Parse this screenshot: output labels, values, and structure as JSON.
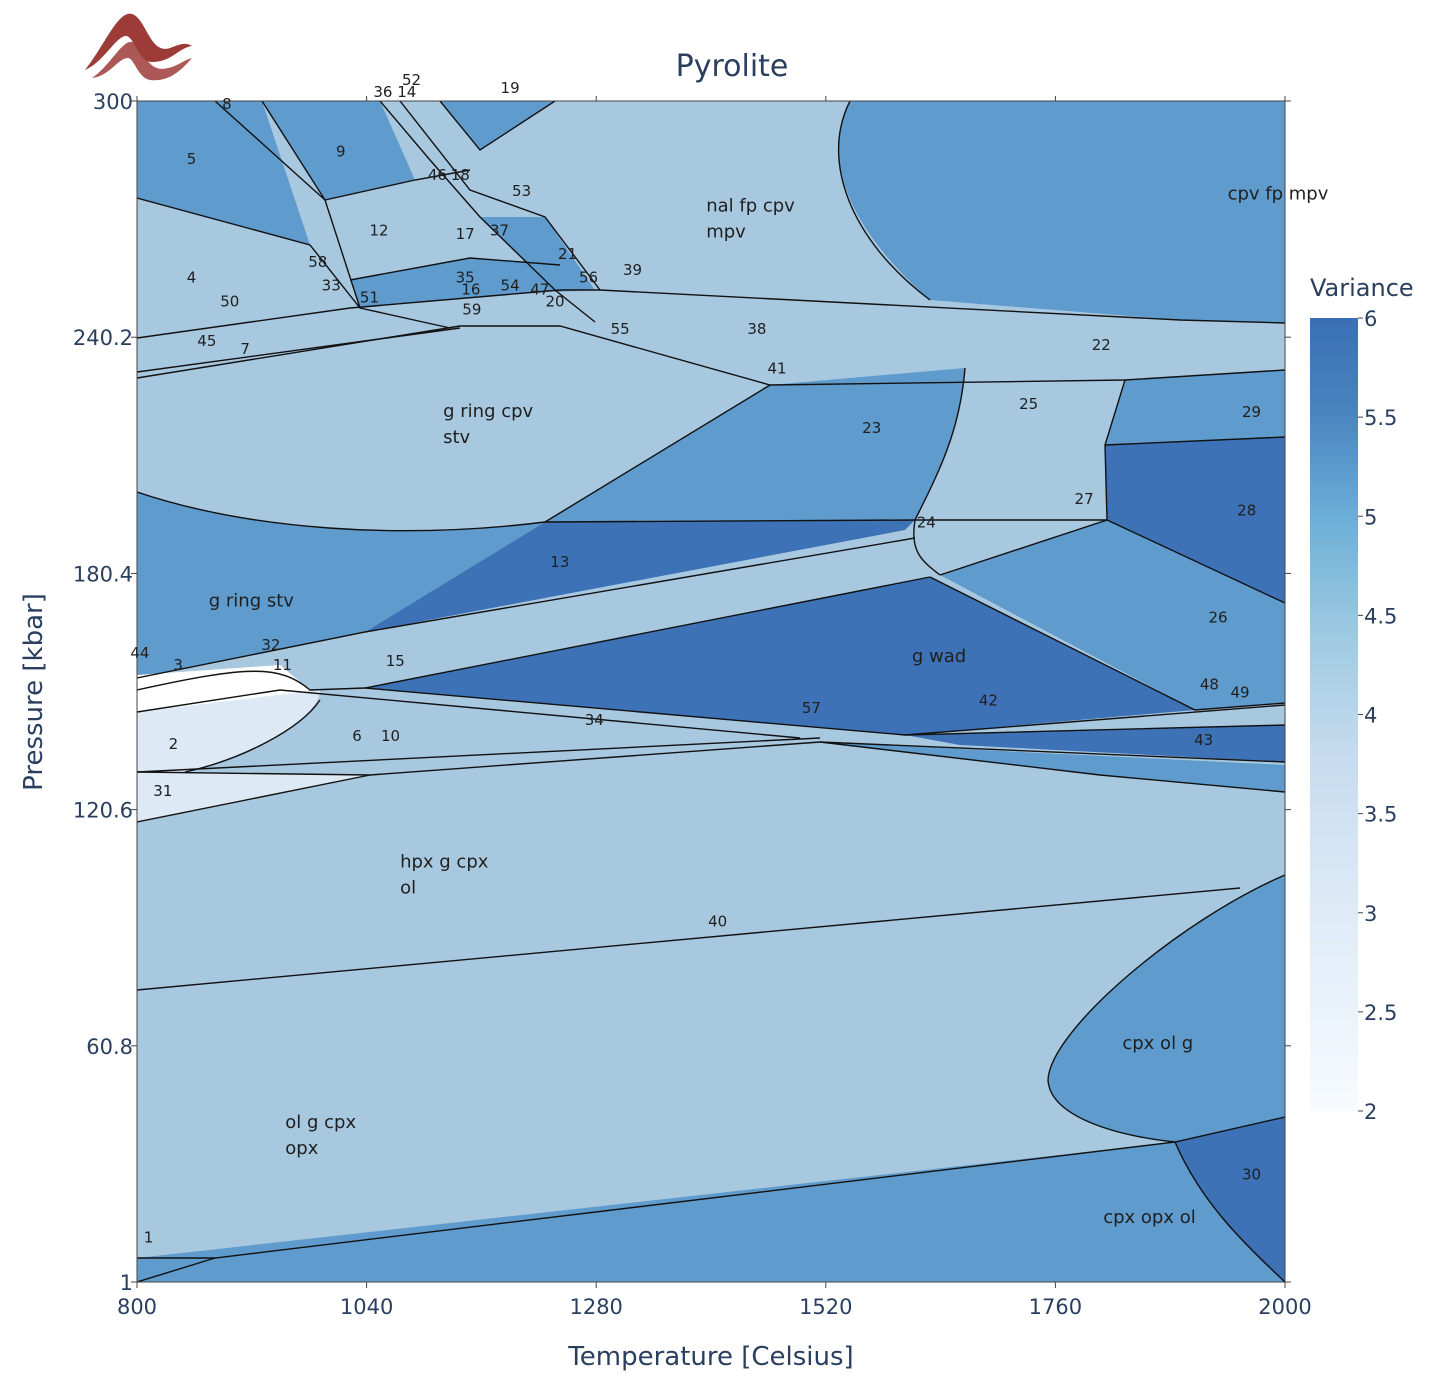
{
  "chart_data": {
    "type": "heatmap",
    "title": "Pyrolite",
    "xlabel": "Temperature [Celsius]",
    "ylabel": "Pressure [kbar]",
    "xlim": [
      800,
      2000
    ],
    "ylim": [
      1,
      300
    ],
    "xticks": [
      "800",
      "1040",
      "1280",
      "1520",
      "1760",
      "2000"
    ],
    "yticks": [
      "1",
      "60.8",
      "120.6",
      "180.4",
      "240.2",
      "300"
    ],
    "colorbar": {
      "title": "Variance",
      "range": [
        2,
        6
      ],
      "ticks": [
        "2",
        "2.5",
        "3",
        "3.5",
        "4",
        "4.5",
        "5",
        "5.5",
        "6"
      ],
      "colors": [
        "#f7fbff",
        "#deebf7",
        "#c6dbef",
        "#9ecae1",
        "#6baed6",
        "#4a84c0",
        "#3a6fb5"
      ]
    },
    "fields": [
      {
        "label": "cpv fp mpv",
        "T": 1940,
        "P": 275,
        "variance": 5
      },
      {
        "label": "nal fp cpv mpv",
        "T": 1395,
        "P": 272,
        "variance": 4
      },
      {
        "label": "g ring cpv stv",
        "T": 1120,
        "P": 220,
        "variance": 4
      },
      {
        "label": "g ring stv",
        "T": 875,
        "P": 172,
        "variance": 5
      },
      {
        "label": "g wad",
        "T": 1610,
        "P": 158,
        "variance": 6
      },
      {
        "label": "hpx g cpx ol",
        "T": 1075,
        "P": 106,
        "variance": 4
      },
      {
        "label": "ol g cpx opx",
        "T": 955,
        "P": 40,
        "variance": 4
      },
      {
        "label": "cpx ol g",
        "T": 1830,
        "P": 60,
        "variance": 5
      },
      {
        "label": "cpx opx ol",
        "T": 1810,
        "P": 16,
        "variance": 5
      }
    ],
    "numbered_fields": [
      {
        "label": "1",
        "T": 812,
        "P": 11
      },
      {
        "label": "2",
        "T": 838,
        "P": 136
      },
      {
        "label": "3",
        "T": 843,
        "P": 156
      },
      {
        "label": "4",
        "T": 857,
        "P": 254
      },
      {
        "label": "5",
        "T": 857,
        "P": 284
      },
      {
        "label": "6",
        "T": 1030,
        "P": 138
      },
      {
        "label": "7",
        "T": 913,
        "P": 236
      },
      {
        "label": "8",
        "T": 894,
        "P": 298
      },
      {
        "label": "9",
        "T": 1013,
        "P": 286
      },
      {
        "label": "10",
        "T": 1065,
        "P": 138
      },
      {
        "label": "11",
        "T": 952,
        "P": 156
      },
      {
        "label": "12",
        "T": 1053,
        "P": 266
      },
      {
        "label": "13",
        "T": 1242,
        "P": 182
      },
      {
        "label": "14",
        "T": 1082,
        "P": 301
      },
      {
        "label": "15",
        "T": 1070,
        "P": 157
      },
      {
        "label": "16",
        "T": 1149,
        "P": 251
      },
      {
        "label": "17",
        "T": 1143,
        "P": 265
      },
      {
        "label": "18",
        "T": 1138,
        "P": 280
      },
      {
        "label": "19",
        "T": 1190,
        "P": 302
      },
      {
        "label": "20",
        "T": 1237,
        "P": 248
      },
      {
        "label": "21",
        "T": 1250,
        "P": 260
      },
      {
        "label": "22",
        "T": 1808,
        "P": 237
      },
      {
        "label": "23",
        "T": 1568,
        "P": 216
      },
      {
        "label": "24",
        "T": 1625,
        "P": 192
      },
      {
        "label": "25",
        "T": 1732,
        "P": 222
      },
      {
        "label": "26",
        "T": 1930,
        "P": 168
      },
      {
        "label": "27",
        "T": 1790,
        "P": 198
      },
      {
        "label": "28",
        "T": 1960,
        "P": 195
      },
      {
        "label": "29",
        "T": 1965,
        "P": 220
      },
      {
        "label": "30",
        "T": 1965,
        "P": 27
      },
      {
        "label": "31",
        "T": 827,
        "P": 124
      },
      {
        "label": "32",
        "T": 940,
        "P": 161
      },
      {
        "label": "33",
        "T": 1003,
        "P": 252
      },
      {
        "label": "34",
        "T": 1278,
        "P": 142
      },
      {
        "label": "35",
        "T": 1143,
        "P": 254
      },
      {
        "label": "36",
        "T": 1057,
        "P": 301
      },
      {
        "label": "37",
        "T": 1179,
        "P": 266
      },
      {
        "label": "38",
        "T": 1448,
        "P": 241
      },
      {
        "label": "39",
        "T": 1318,
        "P": 256
      },
      {
        "label": "40",
        "T": 1407,
        "P": 91
      },
      {
        "label": "41",
        "T": 1469,
        "P": 231
      },
      {
        "label": "42",
        "T": 1690,
        "P": 147
      },
      {
        "label": "43",
        "T": 1915,
        "P": 137
      },
      {
        "label": "44",
        "T": 803,
        "P": 159
      },
      {
        "label": "45",
        "T": 873,
        "P": 238
      },
      {
        "label": "46",
        "T": 1114,
        "P": 280
      },
      {
        "label": "47",
        "T": 1221,
        "P": 251
      },
      {
        "label": "48",
        "T": 1921,
        "P": 151
      },
      {
        "label": "49",
        "T": 1953,
        "P": 149
      },
      {
        "label": "50",
        "T": 897,
        "P": 248
      },
      {
        "label": "51",
        "T": 1043,
        "P": 249
      },
      {
        "label": "52",
        "T": 1087,
        "P": 304
      },
      {
        "label": "53",
        "T": 1202,
        "P": 276
      },
      {
        "label": "54",
        "T": 1190,
        "P": 252
      },
      {
        "label": "55",
        "T": 1305,
        "P": 241
      },
      {
        "label": "56",
        "T": 1272,
        "P": 254
      },
      {
        "label": "57",
        "T": 1505,
        "P": 145
      },
      {
        "label": "58",
        "T": 989,
        "P": 258
      },
      {
        "label": "59",
        "T": 1150,
        "P": 246
      }
    ]
  },
  "logo_icon": "mountain-wave-logo"
}
